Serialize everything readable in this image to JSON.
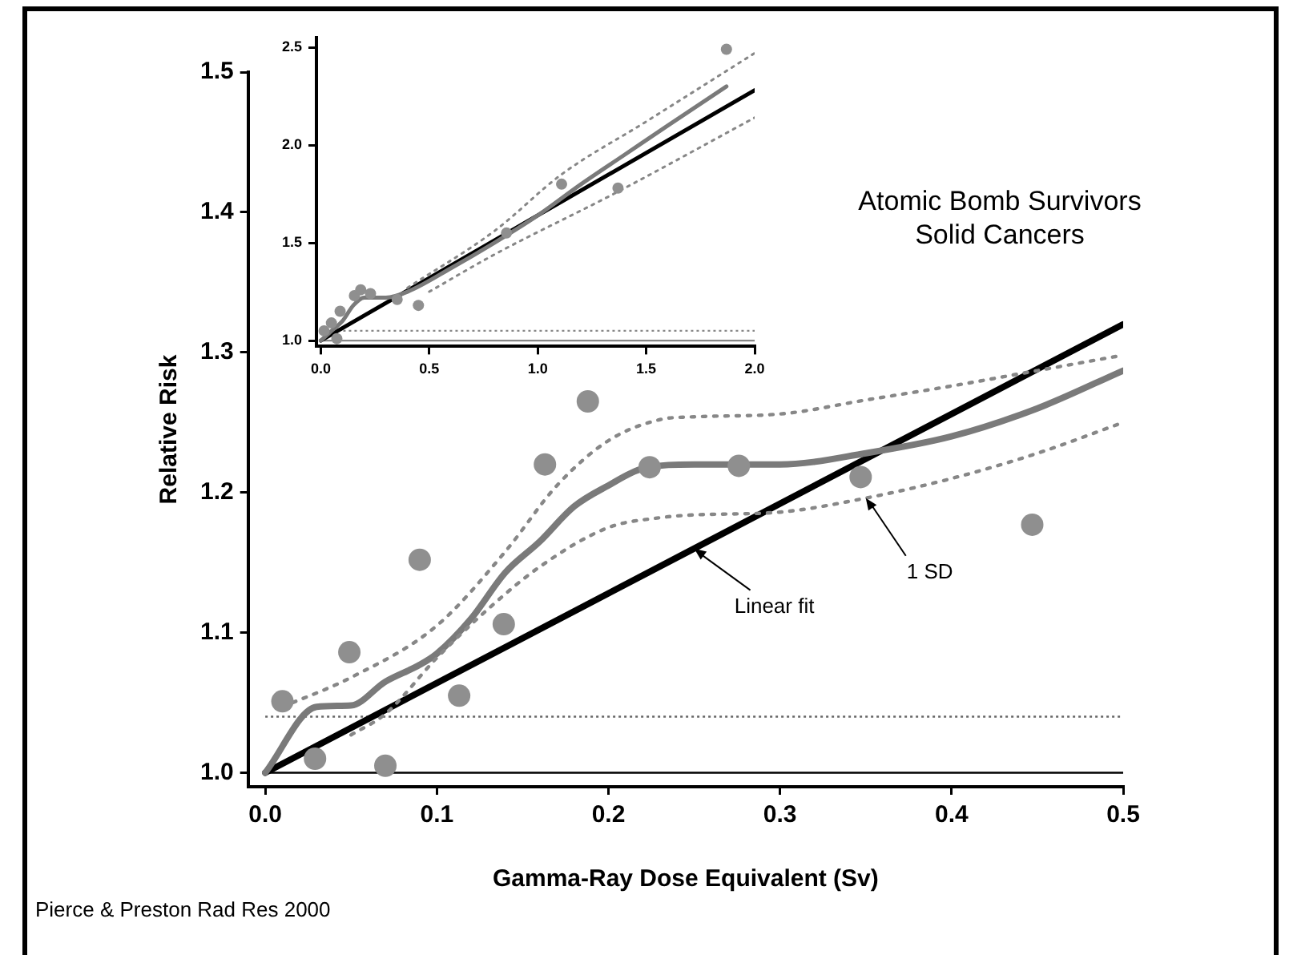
{
  "chart_data": [
    {
      "type": "line",
      "title": "Atomic Bomb Survivors\nSolid Cancers",
      "xlabel": "Gamma-Ray Dose Equivalent (Sv)",
      "ylabel": "Relative Risk",
      "xlim": [
        -0.01,
        0.5
      ],
      "ylim": [
        0.99,
        1.5
      ],
      "xticks": [
        {
          "value": 0,
          "label": "0.0"
        },
        {
          "value": 0.1,
          "label": "0.1"
        },
        {
          "value": 0.2,
          "label": "0.2"
        },
        {
          "value": 0.3,
          "label": "0.3"
        },
        {
          "value": 0.4,
          "label": "0.4"
        },
        {
          "value": 0.5,
          "label": "0.5"
        }
      ],
      "yticks": [
        {
          "value": 1,
          "label": "1.0"
        },
        {
          "value": 1.1,
          "label": "1.1"
        },
        {
          "value": 1.2,
          "label": "1.2"
        },
        {
          "value": 1.3,
          "label": "1.3"
        },
        {
          "value": 1.4,
          "label": "1.4"
        },
        {
          "value": 1.5,
          "label": "1.5"
        }
      ],
      "grid": false,
      "series": [
        {
          "type": "line",
          "color": "#878787",
          "line_style": "dotted",
          "marker": "none",
          "x": [
            0.01,
            0.05,
            0.1,
            0.14,
            0.17,
            0.2,
            0.23,
            0.25,
            0.3,
            0.35,
            0.4,
            0.45,
            0.5
          ],
          "values": [
            1.047,
            1.068,
            1.105,
            1.158,
            1.205,
            1.237,
            1.252,
            1.254,
            1.256,
            1.266,
            1.276,
            1.287,
            1.298
          ]
        },
        {
          "type": "line",
          "color": "#878787",
          "line_style": "dotted",
          "marker": "none",
          "x": [
            0.05,
            0.07,
            0.1,
            0.13,
            0.16,
            0.2,
            0.23,
            0.25,
            0.3,
            0.35,
            0.4,
            0.45,
            0.5
          ],
          "values": [
            1.027,
            1.042,
            1.082,
            1.117,
            1.147,
            1.175,
            1.182,
            1.184,
            1.186,
            1.196,
            1.21,
            1.228,
            1.25
          ]
        },
        {
          "type": "line",
          "color": "#7a7a7a",
          "line_style": "solid",
          "marker": "none",
          "x": [
            0,
            0.03,
            0.05,
            0.07,
            0.09,
            0.1,
            0.12,
            0.14,
            0.16,
            0.18,
            0.2,
            0.22,
            0.25,
            0.3,
            0.35,
            0.4,
            0.45,
            0.5
          ],
          "values": [
            1.0,
            1.047,
            1.048,
            1.065,
            1.077,
            1.085,
            1.11,
            1.143,
            1.165,
            1.19,
            1.205,
            1.217,
            1.22,
            1.22,
            1.228,
            1.24,
            1.26,
            1.287
          ]
        },
        {
          "type": "line",
          "color": "#000000",
          "line_style": "solid",
          "marker": "none",
          "x": [
            0,
            0.5
          ],
          "values": [
            1.0,
            1.32
          ]
        },
        {
          "type": "scatter",
          "color": "#8f8f8f",
          "marker": "circle",
          "x": [
            0.01,
            0.029,
            0.049,
            0.07,
            0.09,
            0.113,
            0.139,
            0.163,
            0.188,
            0.224,
            0.276,
            0.347,
            0.447
          ],
          "values": [
            1.051,
            1.01,
            1.086,
            1.005,
            1.152,
            1.055,
            1.106,
            1.22,
            1.265,
            1.218,
            1.219,
            1.211,
            1.177
          ]
        }
      ],
      "ref_lines": [
        {
          "axis": "y",
          "value": 1,
          "color": "#000000",
          "line_style": "solid"
        },
        {
          "axis": "y",
          "value": 1.04,
          "color": "#666666",
          "line_style": "dotted"
        }
      ],
      "annotations": [
        {
          "text": "Linear fit",
          "x": 0.25,
          "y": 1.16
        },
        {
          "text": "1 SD",
          "x": 0.35,
          "y": 1.196
        },
        "Pierce & Preston Rad Res 2000"
      ]
    },
    {
      "type": "line",
      "xlim": [
        -0.02,
        2.0
      ],
      "ylim": [
        0.97,
        2.55
      ],
      "xticks": [
        {
          "value": 0,
          "label": "0.0"
        },
        {
          "value": 0.5,
          "label": "0.5"
        },
        {
          "value": 1,
          "label": "1.0"
        },
        {
          "value": 1.5,
          "label": "1.5"
        },
        {
          "value": 2,
          "label": "2.0"
        }
      ],
      "yticks": [
        {
          "value": 1,
          "label": "1.0"
        },
        {
          "value": 1.5,
          "label": "1.5"
        },
        {
          "value": 2,
          "label": "2.0"
        },
        {
          "value": 2.5,
          "label": "2.5"
        }
      ],
      "grid": false,
      "series": [
        {
          "type": "line",
          "color": "#878787",
          "line_style": "dotted",
          "marker": "none",
          "x": [
            0.4,
            0.8,
            1.11,
            1.5,
            2.0
          ],
          "values": [
            1.27,
            1.56,
            1.85,
            2.12,
            2.47
          ]
        },
        {
          "type": "line",
          "color": "#878787",
          "line_style": "dotted",
          "marker": "none",
          "x": [
            0.5,
            0.8,
            1.35,
            2.0
          ],
          "values": [
            1.25,
            1.44,
            1.75,
            2.14
          ]
        },
        {
          "type": "line",
          "color": "#7a7a7a",
          "line_style": "solid",
          "marker": "none",
          "x": [
            0,
            0.05,
            0.1,
            0.15,
            0.2,
            0.3,
            0.4,
            0.6,
            0.8,
            1.0,
            1.2,
            1.4,
            1.6,
            1.87
          ],
          "values": [
            1.0,
            1.05,
            1.1,
            1.18,
            1.22,
            1.22,
            1.25,
            1.37,
            1.5,
            1.64,
            1.8,
            1.95,
            2.1,
            2.3
          ]
        },
        {
          "type": "line",
          "color": "#000000",
          "line_style": "solid",
          "marker": "none",
          "x": [
            0,
            2.0
          ],
          "values": [
            1.0,
            2.28
          ]
        },
        {
          "type": "scatter",
          "color": "#8f8f8f",
          "marker": "circle",
          "x": [
            0.015,
            0.049,
            0.089,
            0.074,
            0.155,
            0.184,
            0.229,
            0.352,
            0.45,
            0.856,
            1.11,
            1.37,
            1.87
          ],
          "values": [
            1.05,
            1.09,
            1.15,
            1.01,
            1.23,
            1.26,
            1.24,
            1.21,
            1.18,
            1.55,
            1.8,
            1.78,
            2.49
          ]
        }
      ],
      "ref_lines": [
        {
          "axis": "y",
          "value": 1,
          "color": "#888888",
          "line_style": "solid"
        },
        {
          "axis": "y",
          "value": 1.05,
          "color": "#888888",
          "line_style": "dotted"
        }
      ]
    }
  ]
}
